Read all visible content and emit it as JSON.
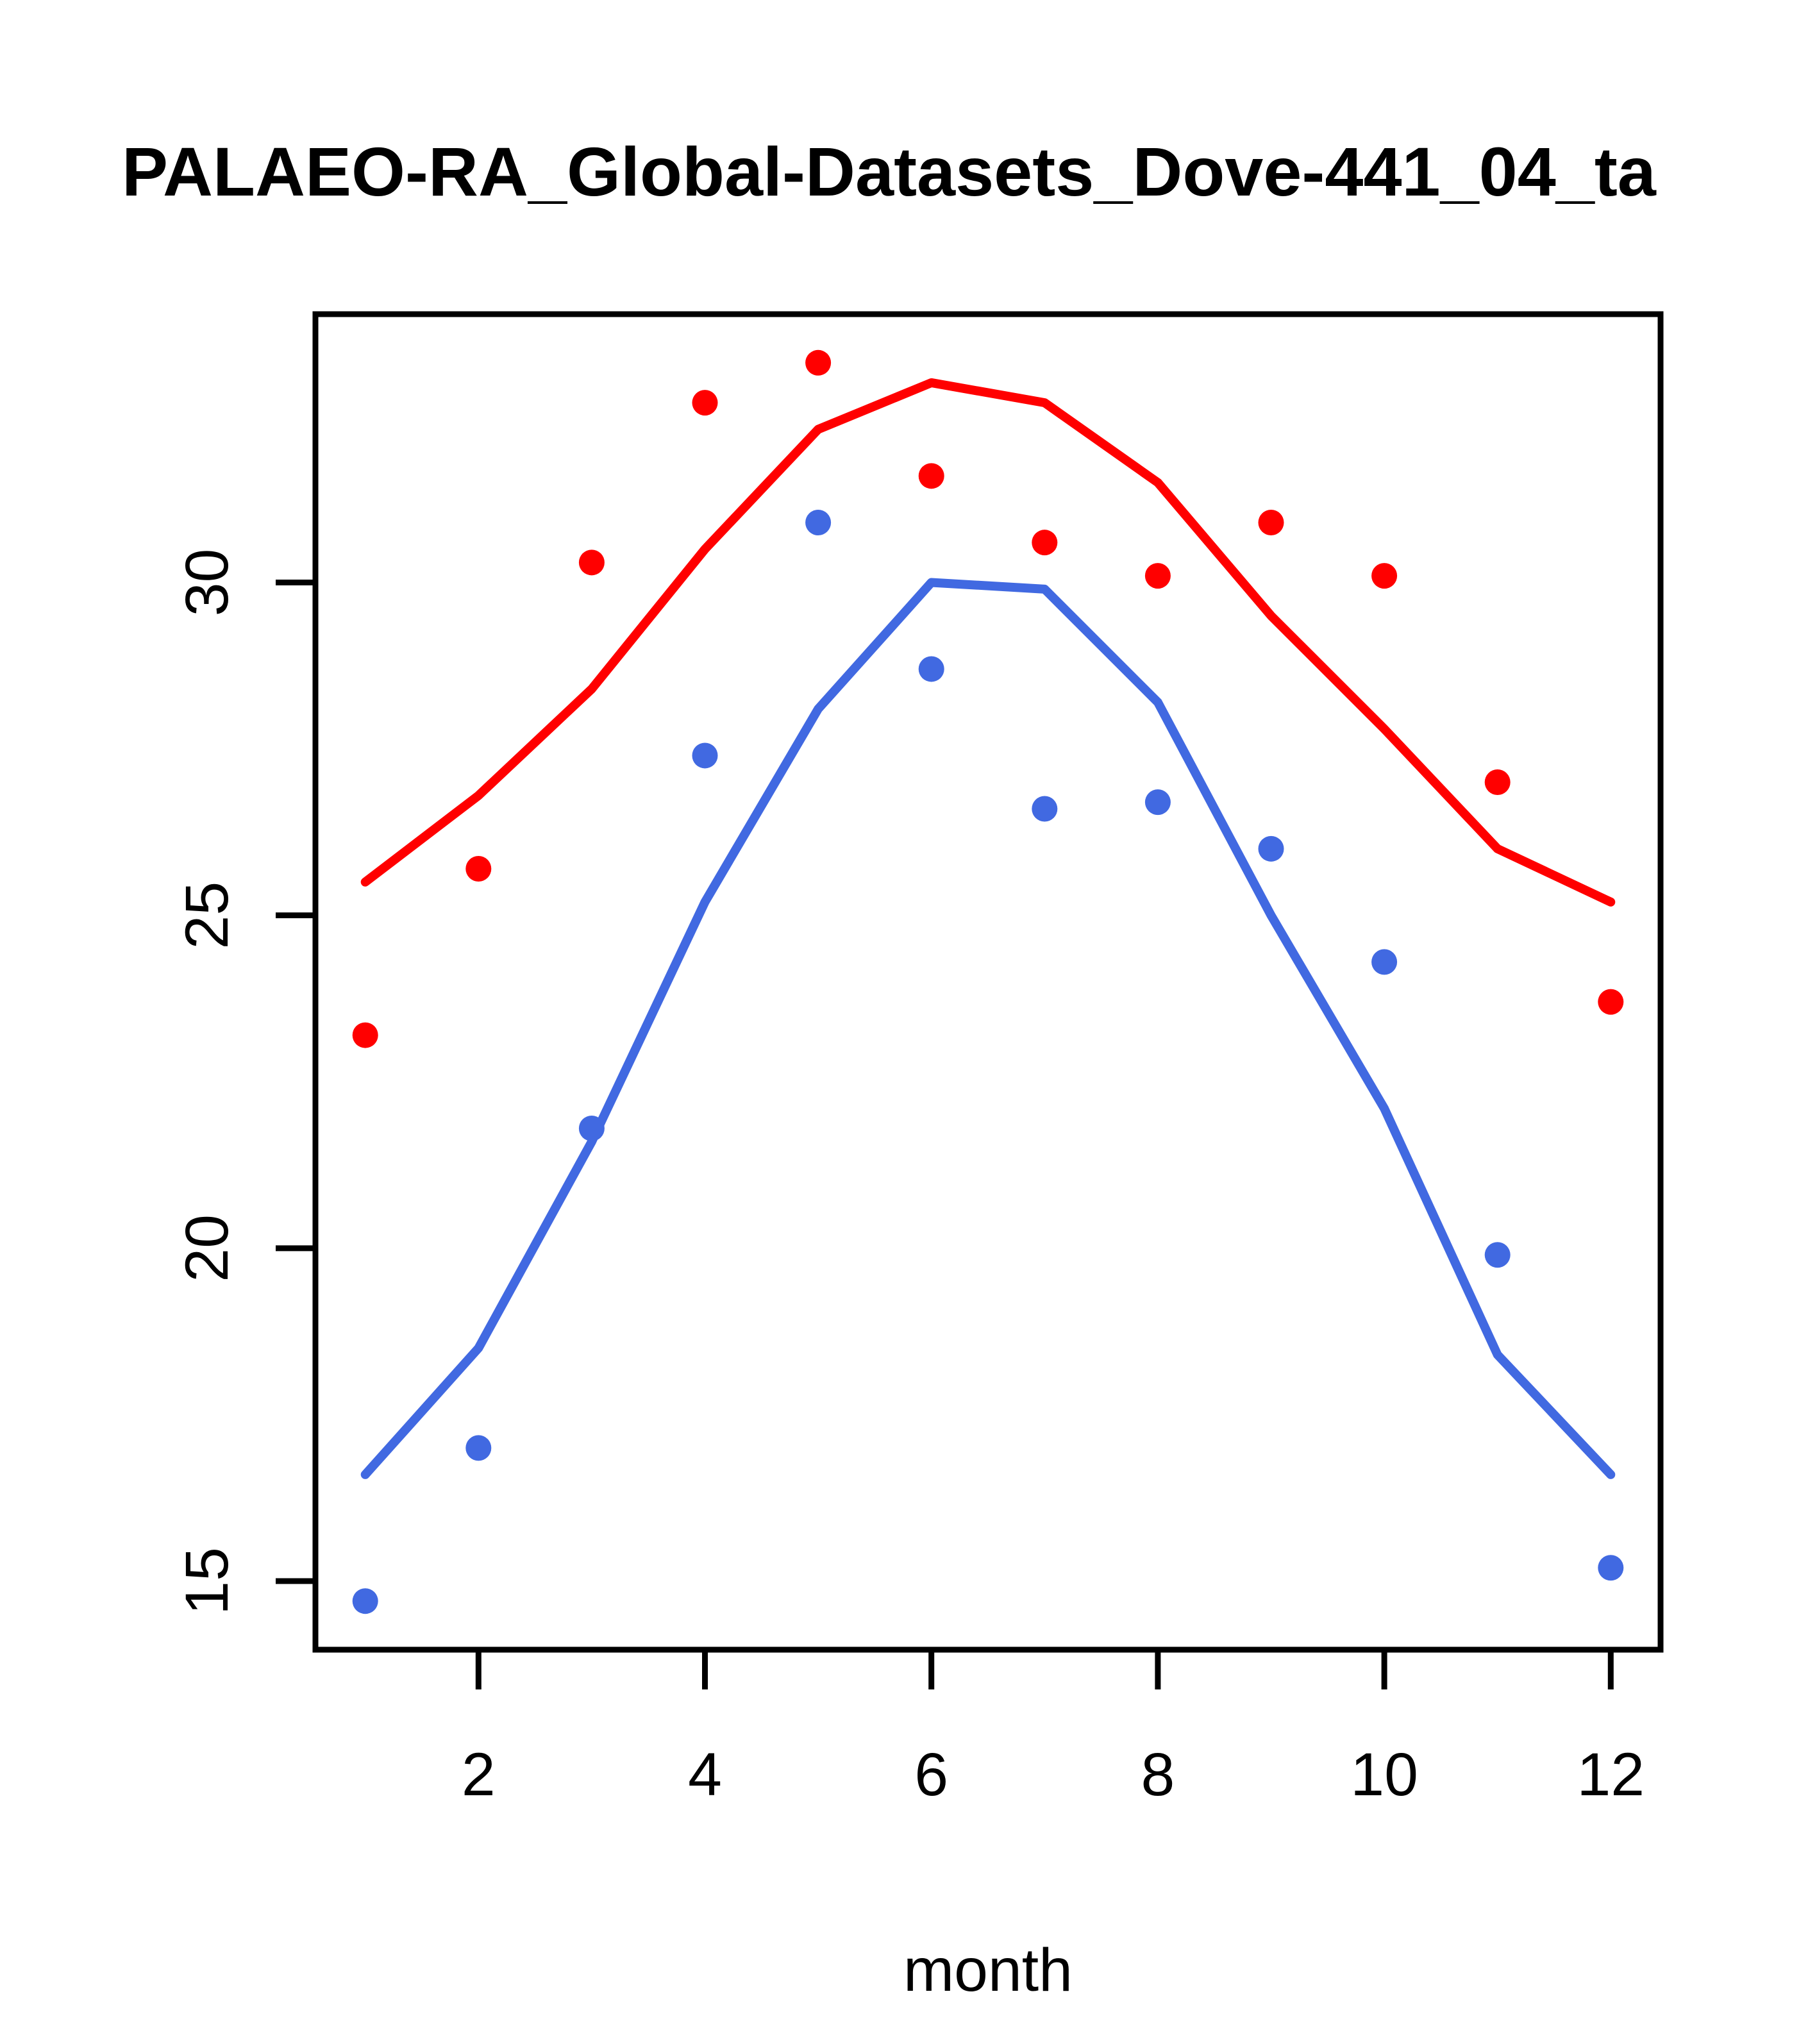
{
  "chart_data": {
    "type": "line",
    "title": "PALAEO-RA_Global-Datasets_Dove-441_04_ta",
    "title_clipped_at_right_edge": true,
    "xlabel": "month",
    "ylabel": "",
    "x": [
      1,
      2,
      3,
      4,
      5,
      6,
      7,
      8,
      9,
      10,
      11,
      12
    ],
    "x_ticks": [
      "2",
      "4",
      "6",
      "8",
      "10",
      "12"
    ],
    "x_tick_values": [
      2,
      4,
      6,
      8,
      10,
      12
    ],
    "y_ticks": [
      "15",
      "20",
      "25",
      "30"
    ],
    "y_tick_values": [
      15,
      20,
      25,
      30
    ],
    "xlim": [
      0.56,
      12.44
    ],
    "ylim": [
      13.97,
      34.03
    ],
    "grid": false,
    "legend": false,
    "colors": {
      "red": "#ff0000",
      "blue": "#4169e1",
      "axis": "#000000",
      "background": "#ffffff"
    },
    "series": [
      {
        "name": "red-line",
        "kind": "line",
        "color": "#ff0000",
        "values": [
          25.5,
          26.8,
          28.4,
          30.5,
          32.3,
          33.0,
          32.7,
          31.5,
          29.5,
          27.8,
          26.0,
          25.2
        ]
      },
      {
        "name": "red-points",
        "kind": "scatter",
        "color": "#ff0000",
        "values": [
          23.2,
          25.7,
          30.3,
          32.7,
          33.3,
          31.6,
          30.6,
          30.1,
          30.9,
          30.1,
          27.0,
          23.7
        ]
      },
      {
        "name": "blue-line",
        "kind": "line",
        "color": "#4169e1",
        "values": [
          16.6,
          18.5,
          21.6,
          25.2,
          28.1,
          30.0,
          29.9,
          28.2,
          25.0,
          22.1,
          18.4,
          16.6
        ]
      },
      {
        "name": "blue-points",
        "kind": "scatter",
        "color": "#4169e1",
        "values": [
          14.7,
          17.0,
          21.8,
          27.4,
          30.9,
          28.7,
          26.6,
          26.7,
          26.0,
          24.3,
          19.9,
          15.2
        ]
      }
    ]
  }
}
